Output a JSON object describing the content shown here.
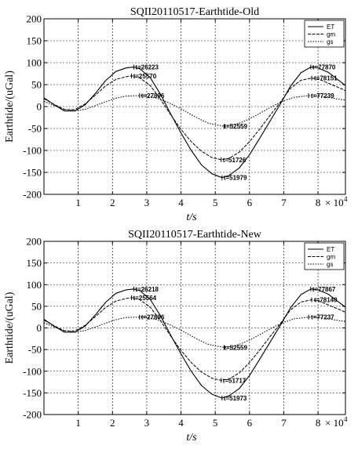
{
  "chart_data": [
    {
      "type": "line",
      "title": "SQII20110517-Earthtide-Old",
      "xlabel": "t/s",
      "ylabel": "Earthtide/(uGal)",
      "x_multiplier": "× 10",
      "x_exponent": "4",
      "xlim": [
        0,
        88000
      ],
      "ylim": [
        -200,
        200
      ],
      "xticks": [
        1,
        2,
        3,
        4,
        5,
        6,
        7,
        8
      ],
      "yticks": [
        200,
        150,
        100,
        50,
        0,
        -50,
        -100,
        -150,
        -200
      ],
      "grid": true,
      "legend": "top-right",
      "legend_labels": [
        "ET",
        "gm",
        "gs"
      ],
      "series": [
        {
          "name": "ET",
          "x": [
            0,
            3000,
            6000,
            9000,
            12000,
            15000,
            18000,
            21000,
            24000,
            26223,
            28000,
            31000,
            34000,
            37000,
            40000,
            43000,
            46000,
            49000,
            51979,
            54000,
            57000,
            60000,
            63000,
            66000,
            69000,
            72000,
            75000,
            77870,
            80000,
            83000,
            86000,
            88000
          ],
          "y": [
            20,
            4,
            -10,
            -10,
            4,
            30,
            59,
            80,
            88,
            90,
            86,
            66,
            28,
            -17,
            -60,
            -100,
            -133,
            -153,
            -162,
            -157,
            -140,
            -110,
            -72,
            -33,
            6,
            47,
            77,
            90,
            88,
            78,
            60,
            48
          ]
        },
        {
          "name": "gm",
          "x": [
            0,
            3000,
            6000,
            9000,
            12000,
            15000,
            18000,
            21000,
            24000,
            25570,
            28000,
            31000,
            34000,
            37000,
            40000,
            43000,
            46000,
            49000,
            51726,
            54000,
            57000,
            60000,
            63000,
            66000,
            69000,
            72000,
            75000,
            78151,
            81000,
            84000,
            87000,
            88000
          ],
          "y": [
            18,
            5,
            -7,
            -7,
            6,
            26,
            47,
            62,
            68,
            70,
            65,
            48,
            17,
            -19,
            -52,
            -80,
            -102,
            -116,
            -121,
            -118,
            -104,
            -80,
            -51,
            -20,
            10,
            42,
            60,
            65,
            60,
            50,
            40,
            36
          ]
        },
        {
          "name": "gs",
          "x": [
            0,
            3000,
            6000,
            9000,
            12000,
            15000,
            18000,
            21000,
            24000,
            27896,
            30000,
            33000,
            36000,
            39000,
            42000,
            45000,
            48000,
            52559,
            55000,
            58000,
            61000,
            64000,
            67000,
            70000,
            73000,
            77239,
            80000,
            83000,
            86000,
            88000
          ],
          "y": [
            12,
            2,
            -6,
            -10,
            -6,
            2,
            11,
            19,
            24,
            25,
            24,
            19,
            10,
            -1,
            -14,
            -27,
            -38,
            -45,
            -43,
            -35,
            -24,
            -11,
            2,
            13,
            21,
            25,
            24,
            21,
            17,
            15
          ]
        }
      ],
      "annotations": [
        {
          "text": "t=26223",
          "x": 26223,
          "y": 90
        },
        {
          "text": "t=25570",
          "x": 25570,
          "y": 70
        },
        {
          "text": "t=27896",
          "x": 27896,
          "y": 25
        },
        {
          "text": "t=52559",
          "x": 52559,
          "y": -45
        },
        {
          "text": "t=51726",
          "x": 51726,
          "y": -121
        },
        {
          "text": "t=51979",
          "x": 51979,
          "y": -162
        },
        {
          "text": "t=77870",
          "x": 77870,
          "y": 90
        },
        {
          "text": "t=78151",
          "x": 78151,
          "y": 65
        },
        {
          "text": "t=77239",
          "x": 77239,
          "y": 25
        }
      ]
    },
    {
      "type": "line",
      "title": "SQII20110517-Earthtide-New",
      "xlabel": "t/s",
      "ylabel": "Earthtide/(uGal)",
      "x_multiplier": "× 10",
      "x_exponent": "4",
      "xlim": [
        0,
        88000
      ],
      "ylim": [
        -200,
        200
      ],
      "xticks": [
        1,
        2,
        3,
        4,
        5,
        6,
        7,
        8
      ],
      "yticks": [
        200,
        150,
        100,
        50,
        0,
        -50,
        -100,
        -150,
        -200
      ],
      "grid": true,
      "legend": "top-right",
      "legend_labels": [
        "ET",
        "gm",
        "gs"
      ],
      "series": [
        {
          "name": "ET",
          "x": [
            0,
            3000,
            6000,
            9000,
            12000,
            15000,
            18000,
            21000,
            24000,
            26218,
            28000,
            31000,
            34000,
            37000,
            40000,
            43000,
            46000,
            49000,
            51973,
            54000,
            57000,
            60000,
            63000,
            66000,
            69000,
            72000,
            75000,
            77867,
            80000,
            83000,
            86000,
            88000
          ],
          "y": [
            20,
            4,
            -10,
            -10,
            4,
            30,
            59,
            80,
            88,
            90,
            86,
            66,
            28,
            -17,
            -60,
            -100,
            -133,
            -153,
            -162,
            -157,
            -140,
            -110,
            -72,
            -33,
            6,
            47,
            77,
            90,
            88,
            78,
            60,
            48
          ]
        },
        {
          "name": "gm",
          "x": [
            0,
            3000,
            6000,
            9000,
            12000,
            15000,
            18000,
            21000,
            24000,
            25564,
            28000,
            31000,
            34000,
            37000,
            40000,
            43000,
            46000,
            49000,
            51717,
            54000,
            57000,
            60000,
            63000,
            66000,
            69000,
            72000,
            75000,
            78140,
            81000,
            84000,
            87000,
            88000
          ],
          "y": [
            18,
            5,
            -7,
            -7,
            6,
            26,
            47,
            62,
            68,
            70,
            65,
            48,
            17,
            -19,
            -52,
            -80,
            -102,
            -116,
            -121,
            -118,
            -104,
            -80,
            -51,
            -20,
            10,
            42,
            60,
            65,
            60,
            50,
            40,
            36
          ]
        },
        {
          "name": "gs",
          "x": [
            0,
            3000,
            6000,
            9000,
            12000,
            15000,
            18000,
            21000,
            24000,
            27896,
            30000,
            33000,
            36000,
            39000,
            42000,
            45000,
            48000,
            52559,
            55000,
            58000,
            61000,
            64000,
            67000,
            70000,
            73000,
            77237,
            80000,
            83000,
            86000,
            88000
          ],
          "y": [
            12,
            2,
            -6,
            -10,
            -6,
            2,
            11,
            19,
            24,
            25,
            24,
            19,
            10,
            -1,
            -14,
            -27,
            -38,
            -45,
            -43,
            -35,
            -24,
            -11,
            2,
            13,
            21,
            25,
            24,
            21,
            17,
            15
          ]
        }
      ],
      "annotations": [
        {
          "text": "t=26218",
          "x": 26218,
          "y": 90
        },
        {
          "text": "t=25564",
          "x": 25564,
          "y": 70
        },
        {
          "text": "t=27896",
          "x": 27896,
          "y": 25
        },
        {
          "text": "t=52559",
          "x": 52559,
          "y": -45
        },
        {
          "text": "t=51717",
          "x": 51717,
          "y": -121
        },
        {
          "text": "t=51973",
          "x": 51973,
          "y": -162
        },
        {
          "text": "t=77867",
          "x": 77867,
          "y": 90
        },
        {
          "text": "t=78140",
          "x": 78140,
          "y": 65
        },
        {
          "text": "t=77237",
          "x": 77237,
          "y": 25
        }
      ]
    }
  ]
}
